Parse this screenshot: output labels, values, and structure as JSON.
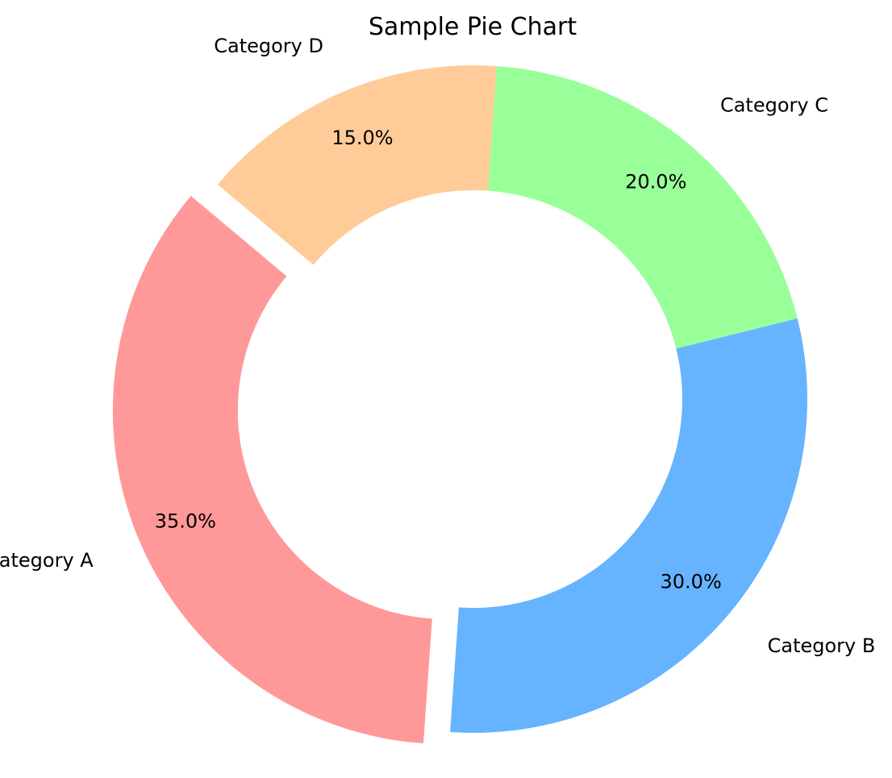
{
  "chart_data": {
    "type": "pie",
    "donut": true,
    "title": "Sample Pie Chart",
    "categories": [
      "Category A",
      "Category B",
      "Category C",
      "Category D"
    ],
    "values": [
      35.0,
      30.0,
      20.0,
      15.0
    ],
    "value_labels": [
      "35.0%",
      "30.0%",
      "20.0%",
      "15.0%"
    ],
    "colors": [
      "#ff9999",
      "#66b3ff",
      "#99ff99",
      "#ffcc99"
    ],
    "exploded": [
      "Category A"
    ],
    "start_angle_deg": 140,
    "direction": "counterclockwise"
  }
}
